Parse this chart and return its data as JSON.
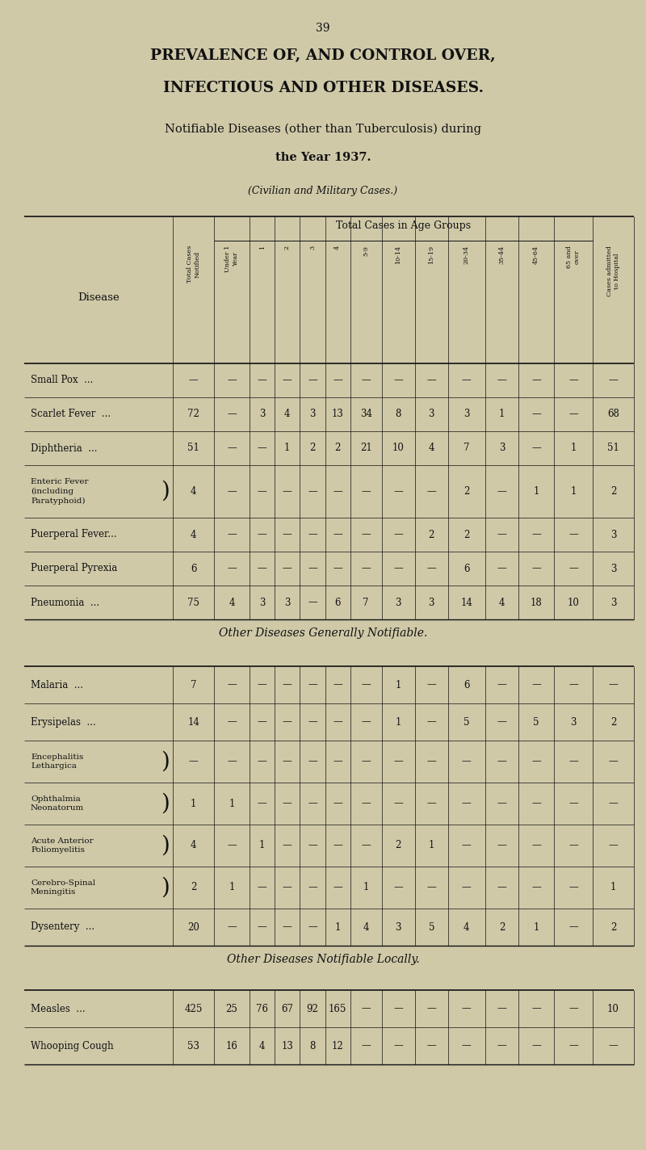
{
  "page_number": "39",
  "title_line1": "PREVALENCE OF, AND CONTROL OVER,",
  "title_line2": "INFECTIOUS AND OTHER DISEASES.",
  "subtitle1": "Notifiable Diseases (other than Tuberculosis) during",
  "subtitle2": "the Year 1937.",
  "subtitle3": "(Civilian and Military Cases.)",
  "bg_color": "#cfc9a8",
  "text_color": "#111111",
  "section2_title": "Other Diseases Generally Notifiable.",
  "section3_title": "Other Diseases Notifiable Locally.",
  "col_headers_rot": [
    "Total Cases\nNotified",
    "Under 1\nYear",
    "1",
    "2",
    "3",
    "4",
    "5-9",
    "10-14",
    "15-19",
    "20-34",
    "35-44",
    "45-64",
    "65 and\nover",
    "Cases admitted\nto Hospital"
  ],
  "col_widths_rel": [
    2.6,
    0.72,
    0.62,
    0.44,
    0.44,
    0.44,
    0.44,
    0.55,
    0.58,
    0.58,
    0.65,
    0.58,
    0.62,
    0.68,
    0.72
  ],
  "section1_rows": [
    [
      "Small Pox  ...",
      "—",
      "—",
      "—",
      "—",
      "—",
      "—",
      "—",
      "—",
      "—",
      "—",
      "—",
      "—",
      "—",
      "—",
      0.42
    ],
    [
      "Scarlet Fever  ...",
      "72",
      "—",
      "3",
      "4",
      "3",
      "13",
      "34",
      "8",
      "3",
      "3",
      "1",
      "—",
      "—",
      "68",
      0.42
    ],
    [
      "Diphtheria  ...",
      "51",
      "—",
      "—",
      "1",
      "2",
      "2",
      "21",
      "10",
      "4",
      "7",
      "3",
      "—",
      "1",
      "51",
      0.42
    ],
    [
      "Enteric Fever\n(including\nParatyphoid)",
      "4",
      "—",
      "—",
      "—",
      "—",
      "—",
      "—",
      "—",
      "—",
      "2",
      "—",
      "1",
      "1",
      "2",
      0.65
    ],
    [
      "Puerperal Fever...",
      "4",
      "—",
      "—",
      "—",
      "—",
      "—",
      "—",
      "—",
      "2",
      "2",
      "—",
      "—",
      "—",
      "3",
      0.42
    ],
    [
      "Puerperal Pyrexia",
      "6",
      "—",
      "—",
      "—",
      "—",
      "—",
      "—",
      "—",
      "—",
      "6",
      "—",
      "—",
      "—",
      "3",
      0.42
    ],
    [
      "Pneumonia  ...",
      "75",
      "4",
      "3",
      "3",
      "—",
      "6",
      "7",
      "3",
      "3",
      "14",
      "4",
      "18",
      "10",
      "3",
      0.42
    ]
  ],
  "section2_rows": [
    [
      "Malaria  ...",
      "7",
      "—",
      "—",
      "—",
      "—",
      "—",
      "—",
      "1",
      "—",
      "6",
      "—",
      "—",
      "—",
      "—",
      0.46
    ],
    [
      "Erysipelas  ...",
      "14",
      "—",
      "—",
      "—",
      "—",
      "—",
      "—",
      "1",
      "—",
      "5",
      "—",
      "5",
      "3",
      "2",
      0.46
    ],
    [
      "Encephalitis\nLethargica",
      "—",
      "—",
      "—",
      "—",
      "—",
      "—",
      "—",
      "—",
      "—",
      "—",
      "—",
      "—",
      "—",
      "—",
      0.52
    ],
    [
      "Ophthalmia\nNeonatorum",
      "1",
      "1",
      "—",
      "—",
      "—",
      "—",
      "—",
      "—",
      "—",
      "—",
      "—",
      "—",
      "—",
      "—",
      0.52
    ],
    [
      "Acute Anterior\nPoliomyelitis",
      "4",
      "—",
      "1",
      "—",
      "—",
      "—",
      "—",
      "2",
      "1",
      "—",
      "—",
      "—",
      "—",
      "—",
      0.52
    ],
    [
      "Cerebro-Spinal\nMeningitis",
      "2",
      "1",
      "—",
      "—",
      "—",
      "—",
      "1",
      "—",
      "—",
      "—",
      "—",
      "—",
      "—",
      "1",
      0.52
    ],
    [
      "Dysentery  ...",
      "20",
      "—",
      "—",
      "—",
      "—",
      "1",
      "4",
      "3",
      "5",
      "4",
      "2",
      "1",
      "—",
      "2",
      0.46
    ]
  ],
  "section3_rows": [
    [
      "Measles  ...",
      "425",
      "25",
      "76",
      "67",
      "92",
      "165",
      "—",
      "—",
      "—",
      "—",
      "—",
      "—",
      "—",
      "10",
      0.46
    ],
    [
      "Whooping Cough",
      "53",
      "16",
      "4",
      "13",
      "8",
      "12",
      "—",
      "—",
      "—",
      "—",
      "—",
      "—",
      "—",
      "—",
      0.46
    ]
  ]
}
